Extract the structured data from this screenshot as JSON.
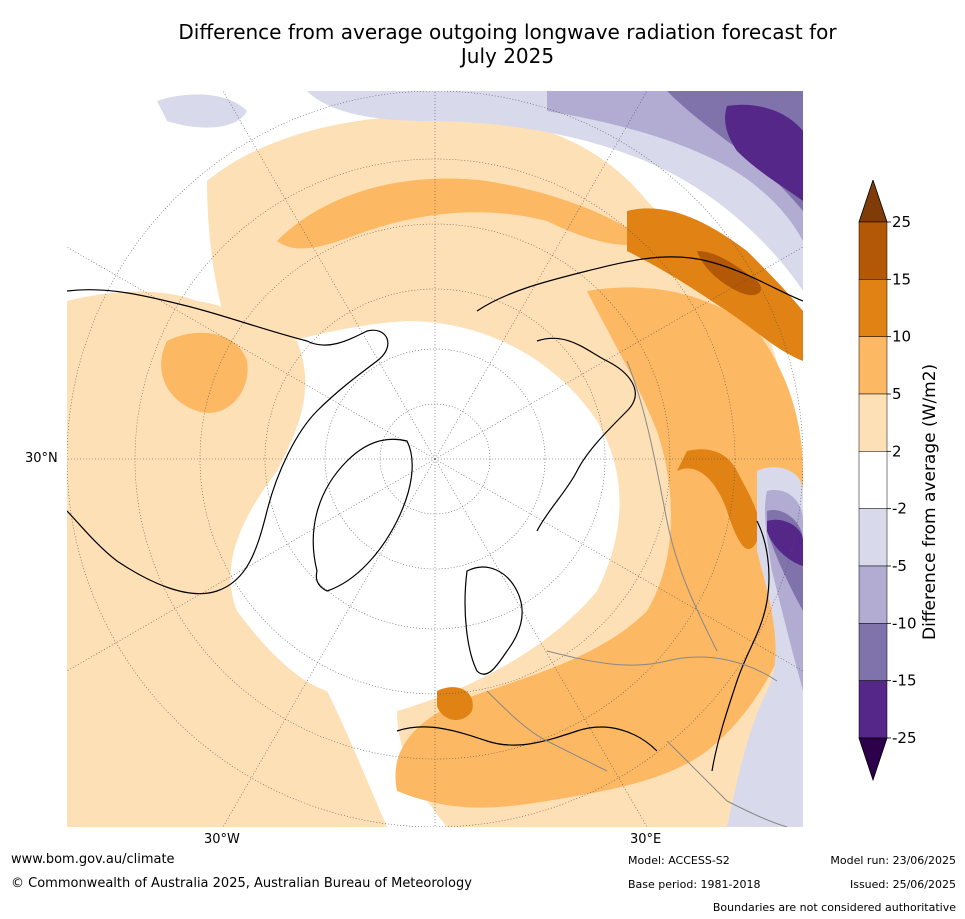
{
  "title": {
    "line1": "Difference from average outgoing longwave radiation forecast for",
    "line2": "July 2025"
  },
  "map": {
    "lat_label": "30°N",
    "lon_label_left": "30°W",
    "lon_label_right": "30°E",
    "ocean_color": "#ffffff",
    "coast_color": "#000000",
    "border_color": "#888888",
    "grid_color": "#555555"
  },
  "colorbar": {
    "label": "Difference from average (W/m2)",
    "ticks": [
      "25",
      "15",
      "10",
      "5",
      "2",
      "-2",
      "-5",
      "-10",
      "-15",
      "-25"
    ],
    "colors": [
      "#7f3b08",
      "#b35806",
      "#e08214",
      "#fdb863",
      "#fee0b6",
      "#ffffff",
      "#d8daeb",
      "#b2abd2",
      "#8073ac",
      "#542788",
      "#2d004b"
    ]
  },
  "footer": {
    "website": "www.bom.gov.au/climate",
    "copyright": "© Commonwealth of Australia 2025, Australian Bureau of Meteorology",
    "model": "Model: ACCESS-S2",
    "base_period": "Base period: 1981-2018",
    "model_run": "Model run: 23/06/2025",
    "issued": "Issued: 25/06/2025",
    "disclaimer": "Boundaries are not considered authoritative"
  }
}
